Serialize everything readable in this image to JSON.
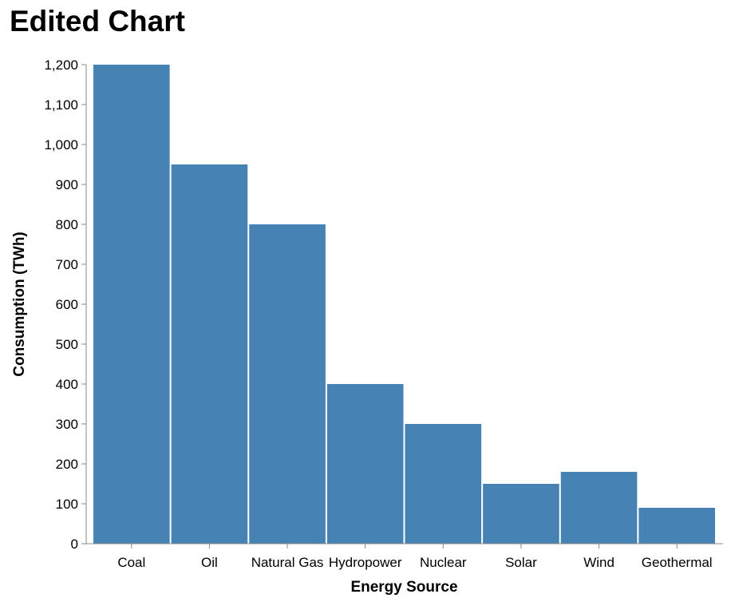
{
  "chart_data": {
    "type": "bar",
    "title": "Edited Chart",
    "xlabel": "Energy Source",
    "ylabel": "Consumption (TWh)",
    "categories": [
      "Coal",
      "Oil",
      "Natural Gas",
      "Hydropower",
      "Nuclear",
      "Solar",
      "Wind",
      "Geothermal"
    ],
    "values": [
      1200,
      950,
      800,
      400,
      300,
      150,
      180,
      90
    ],
    "ylim": [
      0,
      1200
    ],
    "yticks": [
      0,
      100,
      200,
      300,
      400,
      500,
      600,
      700,
      800,
      900,
      1000,
      1100,
      1200
    ],
    "ytick_labels": [
      "0",
      "100",
      "200",
      "300",
      "400",
      "500",
      "600",
      "700",
      "800",
      "900",
      "1,000",
      "1,100",
      "1,200"
    ],
    "grid": false,
    "colors": {
      "bar": "#4682b4",
      "axis": "#888888"
    }
  }
}
